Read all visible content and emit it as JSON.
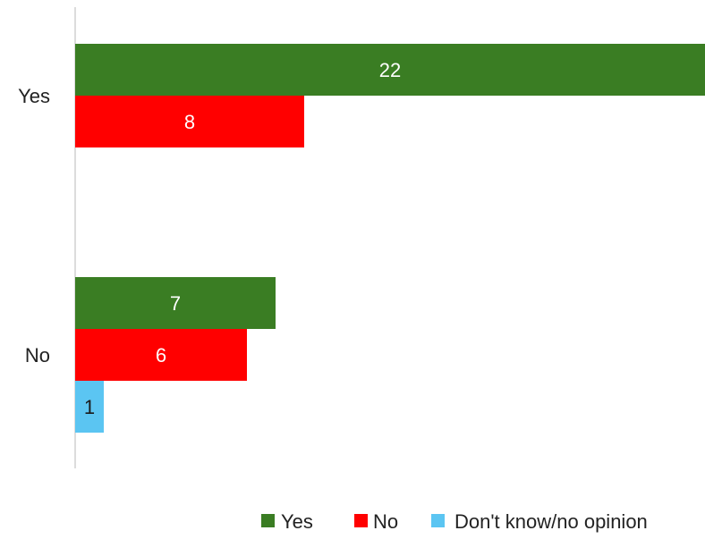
{
  "chart_data": {
    "type": "bar",
    "orientation": "horizontal",
    "categories": [
      "Yes",
      "No"
    ],
    "series": [
      {
        "name": "Yes",
        "color": "#3a7d23",
        "values": [
          22,
          7
        ]
      },
      {
        "name": "No",
        "color": "#ff0000",
        "values": [
          8,
          6
        ]
      },
      {
        "name": "Don't know/no opinion",
        "color": "#5bc5f2",
        "values": [
          null,
          1
        ]
      }
    ],
    "xlim": [
      0,
      22
    ],
    "grid": false,
    "legend_position": "bottom-right",
    "data_labels": true
  }
}
